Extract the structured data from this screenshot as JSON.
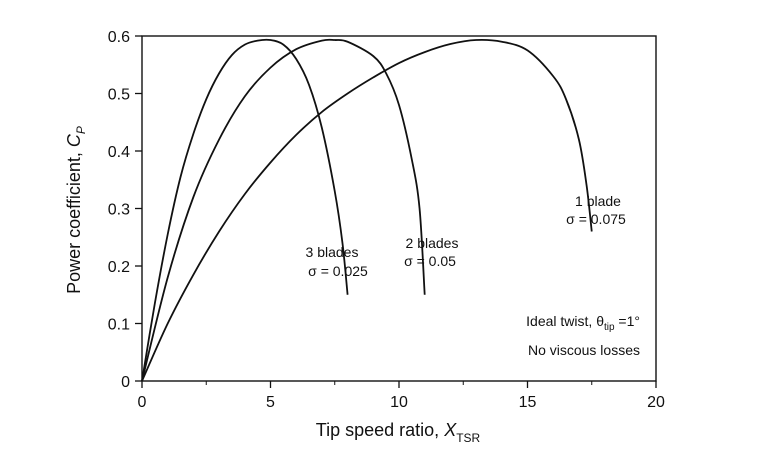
{
  "chart_data": {
    "type": "line",
    "xlabel": {
      "main": "Tip speed ratio, ",
      "symbol": "X",
      "sub": "TSR"
    },
    "ylabel": {
      "main": "Power coefficient, ",
      "symbol": "C",
      "sub": "P"
    },
    "xlim": [
      0,
      20
    ],
    "ylim": [
      0,
      0.6
    ],
    "xticks": [
      "0",
      "5",
      "10",
      "15",
      "20"
    ],
    "yticks": [
      "0",
      "0.1",
      "0.2",
      "0.3",
      "0.4",
      "0.5",
      "0.6"
    ],
    "grid": false,
    "series": [
      {
        "name": "3 blades",
        "sigma": "σ = 0.025",
        "x": [
          0,
          0.5,
          1,
          1.5,
          2,
          2.5,
          3,
          3.5,
          4,
          4.5,
          5,
          5.5,
          6,
          6.5,
          7,
          7.5,
          7.8,
          8.0
        ],
        "y": [
          0,
          0.135,
          0.255,
          0.355,
          0.43,
          0.49,
          0.535,
          0.567,
          0.585,
          0.592,
          0.593,
          0.585,
          0.56,
          0.515,
          0.44,
          0.33,
          0.24,
          0.15
        ]
      },
      {
        "name": "2 blades",
        "sigma": "σ = 0.05",
        "x": [
          0,
          1,
          2,
          3,
          4,
          5,
          6,
          7,
          7.5,
          8,
          9,
          9.5,
          10,
          10.5,
          10.8,
          11.0
        ],
        "y": [
          0,
          0.18,
          0.32,
          0.42,
          0.495,
          0.545,
          0.577,
          0.592,
          0.593,
          0.59,
          0.565,
          0.535,
          0.48,
          0.385,
          0.3,
          0.15
        ]
      },
      {
        "name": "1 blade",
        "sigma": "σ = 0.075",
        "x": [
          0,
          1,
          2,
          3,
          4,
          5,
          6,
          7,
          8,
          9,
          10,
          11,
          12,
          13,
          14,
          15,
          16,
          16.5,
          17,
          17.3,
          17.5
        ],
        "y": [
          0,
          0.1,
          0.185,
          0.26,
          0.325,
          0.38,
          0.428,
          0.468,
          0.5,
          0.528,
          0.553,
          0.572,
          0.586,
          0.593,
          0.59,
          0.575,
          0.53,
          0.49,
          0.42,
          0.34,
          0.26
        ]
      }
    ],
    "annotations": {
      "twist_prefix": "Ideal twist, ",
      "twist_symbol": "θ",
      "twist_sub": "tip",
      "twist_value": " =1°",
      "losses": "No viscous losses"
    }
  }
}
